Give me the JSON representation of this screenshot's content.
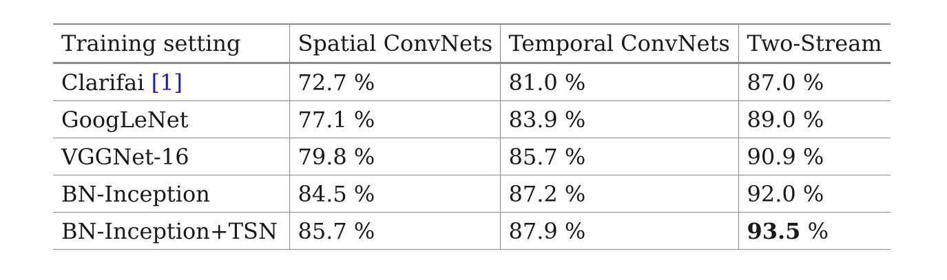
{
  "table": {
    "headers": [
      "Training setting",
      "Spatial ConvNets",
      "Temporal ConvNets",
      "Two-Stream"
    ],
    "rows": [
      {
        "setting": "Clarifai",
        "citation": "1",
        "spatial": "72.7 %",
        "temporal": "81.0 %",
        "two_stream": "87.0 %"
      },
      {
        "setting": "GoogLeNet",
        "spatial": "77.1 %",
        "temporal": "83.9 %",
        "two_stream": "89.0 %"
      },
      {
        "setting": "VGGNet-16",
        "spatial": "79.8 %",
        "temporal": "85.7 %",
        "two_stream": "90.9 %"
      },
      {
        "setting": "BN-Inception",
        "spatial": "84.5 %",
        "temporal": "87.2 %",
        "two_stream": "92.0 %"
      },
      {
        "setting": "BN-Inception+TSN",
        "spatial": "85.7 %",
        "temporal": "87.9 %",
        "two_stream_bold": "93.5",
        "two_stream_unit": " %"
      }
    ],
    "colors": {
      "citation_link": "#1a1ad6",
      "rule": "#8a8a8a"
    }
  }
}
